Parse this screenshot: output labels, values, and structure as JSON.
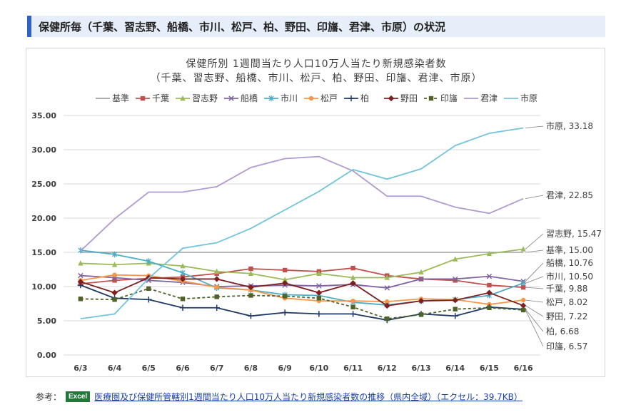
{
  "header": {
    "title": "保健所毎（千葉、習志野、船橋、市川、松戸、柏、野田、印旛、君津、市原）の状況"
  },
  "reference": {
    "label": "参考：",
    "badge": "Excel",
    "link_text": "医療圏及び保健所管轄別1週間当たり人口10万人当たり新規感染者数の推移（県内全域）（エクセル：39.7KB）"
  },
  "chart_data": {
    "type": "line",
    "title": "保健所別 1週間当たり人口10万人当たり新規感染者数",
    "subtitle": "（千葉、習志野、船橋、市川、松戸、柏、野田、印旛、君津、市原）",
    "xlabel": "",
    "ylabel": "",
    "categories": [
      "6/3",
      "6/4",
      "6/5",
      "6/6",
      "6/7",
      "6/8",
      "6/9",
      "6/10",
      "6/11",
      "6/12",
      "6/13",
      "6/14",
      "6/15",
      "6/16"
    ],
    "ylim": [
      0,
      35
    ],
    "yticks": [
      "0.00",
      "5.00",
      "10.00",
      "15.00",
      "20.00",
      "25.00",
      "30.00",
      "35.00"
    ],
    "grid": true,
    "legend_position": "top",
    "series": [
      {
        "name": "基準",
        "color": "#a0a0a0",
        "marker": "none",
        "dash": false,
        "values": [
          15,
          15,
          15,
          15,
          15,
          15,
          15,
          15,
          15,
          15,
          15,
          15,
          15,
          15
        ],
        "end_label": "基準, 15.00"
      },
      {
        "name": "千葉",
        "color": "#c0504d",
        "marker": "square",
        "dash": false,
        "values": [
          10.4,
          10.9,
          11.2,
          11.4,
          11.9,
          12.6,
          12.4,
          12.2,
          12.7,
          11.6,
          11.1,
          10.9,
          10.2,
          9.88
        ],
        "end_label": "千葉, 9.88"
      },
      {
        "name": "習志野",
        "color": "#9bbb59",
        "marker": "triangle",
        "dash": false,
        "values": [
          13.4,
          13.2,
          13.4,
          13.0,
          12.2,
          11.9,
          11.0,
          11.9,
          11.3,
          11.3,
          12.1,
          14.0,
          14.8,
          15.47
        ],
        "end_label": "習志野, 15.47"
      },
      {
        "name": "船橋",
        "color": "#8064a2",
        "marker": "x",
        "dash": false,
        "values": [
          11.6,
          11.3,
          10.9,
          10.6,
          10.0,
          10.1,
          10.2,
          10.1,
          10.3,
          9.8,
          11.1,
          11.1,
          11.5,
          10.76
        ],
        "end_label": "船橋, 10.76"
      },
      {
        "name": "市川",
        "color": "#4bacc6",
        "marker": "star",
        "dash": false,
        "values": [
          15.3,
          14.7,
          13.7,
          12.0,
          9.8,
          9.5,
          8.8,
          8.7,
          7.7,
          7.3,
          7.9,
          8.1,
          8.7,
          10.5
        ],
        "end_label": "市川, 10.50"
      },
      {
        "name": "松戸",
        "color": "#f79646",
        "marker": "circle",
        "dash": false,
        "values": [
          10.9,
          11.7,
          11.6,
          10.8,
          9.9,
          9.5,
          8.3,
          7.9,
          7.9,
          7.8,
          8.2,
          8.1,
          7.4,
          8.02
        ],
        "end_label": "松戸, 8.02"
      },
      {
        "name": "柏",
        "color": "#1f3864",
        "marker": "plus",
        "dash": false,
        "values": [
          10.2,
          8.3,
          8.1,
          6.9,
          6.9,
          5.7,
          6.2,
          6.0,
          6.0,
          5.1,
          6.0,
          5.7,
          7.0,
          6.68
        ],
        "end_label": "柏, 6.68"
      },
      {
        "name": "野田",
        "color": "#7f1f1f",
        "marker": "diamond",
        "dash": false,
        "values": [
          10.7,
          9.1,
          11.3,
          11.1,
          11.1,
          9.9,
          10.5,
          9.1,
          10.5,
          7.2,
          7.9,
          8.0,
          9.1,
          7.22
        ],
        "end_label": "野田, 7.22"
      },
      {
        "name": "印旛",
        "color": "#4f6228",
        "marker": "square",
        "dash": true,
        "values": [
          8.2,
          8.1,
          9.7,
          8.2,
          8.5,
          8.7,
          8.6,
          8.3,
          7.0,
          5.3,
          5.9,
          6.7,
          6.9,
          6.57
        ],
        "end_label": "印旛, 6.57"
      },
      {
        "name": "君津",
        "color": "#b09ad0",
        "marker": "none",
        "dash": false,
        "values": [
          15.2,
          19.9,
          23.8,
          23.8,
          24.6,
          27.4,
          28.7,
          29.0,
          26.9,
          23.2,
          23.2,
          21.6,
          20.7,
          22.85
        ],
        "end_label": "君津, 22.85"
      },
      {
        "name": "市原",
        "color": "#72c4dc",
        "marker": "none",
        "dash": false,
        "values": [
          5.3,
          6.0,
          11.2,
          15.6,
          16.4,
          18.5,
          21.2,
          23.9,
          27.1,
          25.7,
          27.2,
          30.6,
          32.4,
          33.18
        ],
        "end_label": "市原, 33.18"
      }
    ]
  }
}
